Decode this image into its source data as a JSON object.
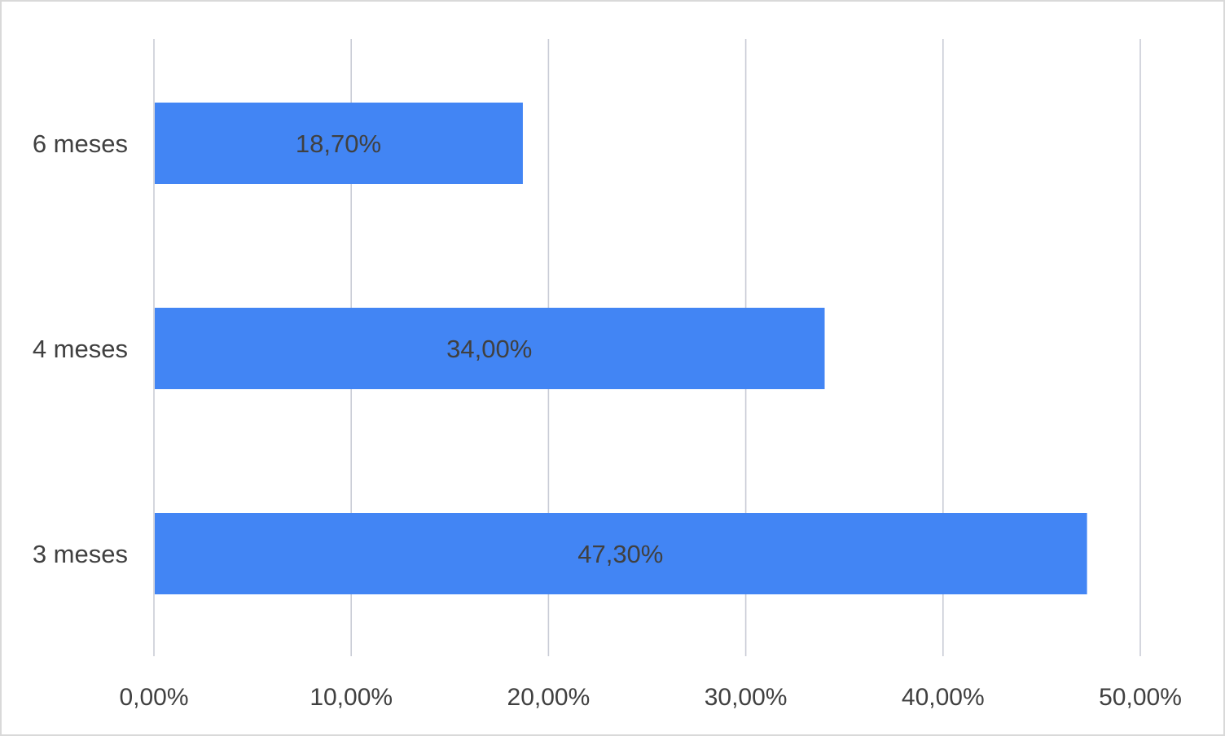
{
  "chart_data": {
    "type": "bar",
    "orientation": "horizontal",
    "title": "",
    "xlabel": "",
    "ylabel": "",
    "categories": [
      "6 meses",
      "4 meses",
      "3 meses"
    ],
    "values": [
      18.7,
      34.0,
      47.3
    ],
    "data_labels": [
      "18,70%",
      "34,00%",
      "47,30%"
    ],
    "xlim": [
      0,
      50
    ],
    "x_ticks": [
      0,
      10,
      20,
      30,
      40,
      50
    ],
    "x_tick_labels": [
      "0,00%",
      "10,00%",
      "20,00%",
      "30,00%",
      "40,00%",
      "50,00%"
    ],
    "grid": "vertical",
    "legend": "none",
    "bar_color": "#4285f4",
    "grid_color": "#c9ccd6",
    "text_color": "#404040"
  }
}
